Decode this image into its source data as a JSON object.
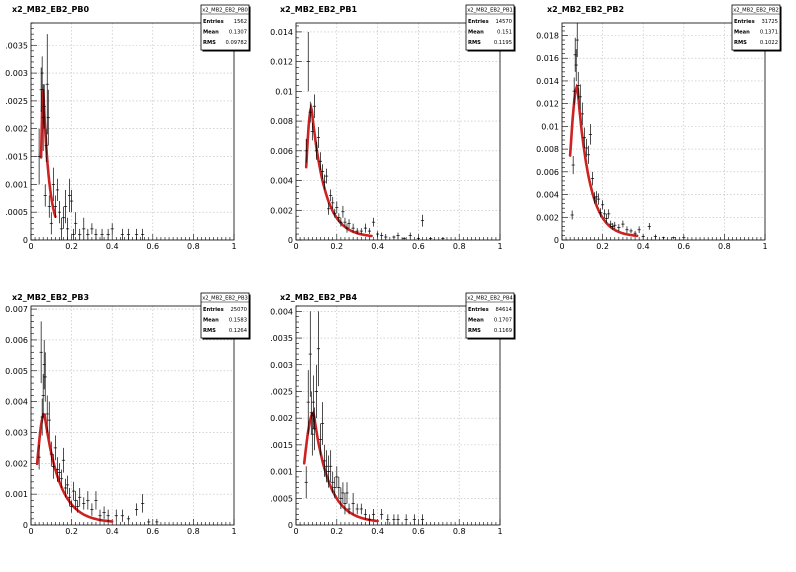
{
  "chart_data": [
    {
      "type": "scatter",
      "title": "x2_MB2_EB2_PB0",
      "xlim": [
        0,
        1
      ],
      "ylim": [
        0,
        0.0039
      ],
      "xticks": [
        0,
        0.2,
        0.4,
        0.6,
        0.8,
        1
      ],
      "xtick_labels": [
        "0",
        "0.2",
        "0.4",
        "0.6",
        "0.8",
        "1"
      ],
      "yticks": [
        0.0005,
        0.001,
        0.0015,
        0.002,
        0.0025,
        0.003,
        0.0035
      ],
      "ytick_labels": [
        ".0005",
        "0.001",
        ".0015",
        "0.002",
        ".0025",
        "0.003",
        ".0035"
      ],
      "grid": true,
      "fit_color": "#cc2222",
      "stats": {
        "name": "x2_MB2_EB2_PB0",
        "rows": [
          {
            "label": "Entries",
            "value": "1562"
          },
          {
            "label": "Mean",
            "value": "0.1307"
          },
          {
            "label": "RMS",
            "value": "0.09782"
          }
        ]
      },
      "fit": {
        "x0": 0.05,
        "peak_x": 0.06,
        "peak_y": 0.0027,
        "decay": 0.03,
        "x_end": 0.12
      },
      "points": [
        [
          0.04,
          0.0015,
          0.0005
        ],
        [
          0.05,
          0.0027,
          0.0004
        ],
        [
          0.055,
          0.003,
          0.0003
        ],
        [
          0.06,
          0.0022,
          0.0006
        ],
        [
          0.065,
          0.0024,
          0.0004
        ],
        [
          0.07,
          0.0008,
          0.0002
        ],
        [
          0.075,
          0.0017,
          0.0003
        ],
        [
          0.08,
          0.0028,
          0.0009
        ],
        [
          0.085,
          0.0022,
          0.0005
        ],
        [
          0.09,
          0.0006,
          0.0002
        ],
        [
          0.1,
          0.0003,
          0.0002
        ],
        [
          0.11,
          0.001,
          0.0003
        ],
        [
          0.12,
          0.0006,
          0.0002
        ],
        [
          0.13,
          0.0009,
          0.0002
        ],
        [
          0.14,
          0.0005,
          0.0002
        ],
        [
          0.15,
          0.0002,
          0.0002
        ],
        [
          0.16,
          0.0004,
          0.0002
        ],
        [
          0.17,
          0.0006,
          0.0003
        ],
        [
          0.18,
          0.0002,
          0.0002
        ],
        [
          0.19,
          0.0008,
          0.0003
        ],
        [
          0.2,
          0.0007,
          0.0002
        ],
        [
          0.21,
          0.0001,
          0.0001
        ],
        [
          0.22,
          0.0003,
          0.0002
        ],
        [
          0.24,
          0.0001,
          0.0001
        ],
        [
          0.26,
          0.0002,
          0.0002
        ],
        [
          0.28,
          0.0001,
          0.0001
        ],
        [
          0.3,
          0.0002,
          0.0001
        ],
        [
          0.32,
          0.0001,
          0.0001
        ],
        [
          0.35,
          0.0001,
          0.0001
        ],
        [
          0.38,
          0.0001,
          0.0001
        ],
        [
          0.4,
          0.0002,
          0.0001
        ],
        [
          0.45,
          0.0001,
          0.0001
        ],
        [
          0.48,
          0.0001,
          0.0001
        ],
        [
          0.52,
          0.0001,
          0.0001
        ],
        [
          0.55,
          0.0001,
          0.0001
        ]
      ]
    },
    {
      "type": "scatter",
      "title": "x2_MB2_EB2_PB1",
      "xlim": [
        0,
        1
      ],
      "ylim": [
        0,
        0.0146
      ],
      "xticks": [
        0,
        0.2,
        0.4,
        0.6,
        0.8,
        1
      ],
      "xtick_labels": [
        "0",
        "0.2",
        "0.4",
        "0.6",
        "0.8",
        "1"
      ],
      "yticks": [
        0.002,
        0.004,
        0.006,
        0.008,
        0.01,
        0.012,
        0.014
      ],
      "ytick_labels": [
        "0.002",
        "0.004",
        "0.006",
        "0.008",
        "0.01",
        "0.012",
        "0.014"
      ],
      "grid": true,
      "fit_color": "#cc2222",
      "stats": {
        "name": "x2_MB2_EB2_PB1",
        "rows": [
          {
            "label": "Entries",
            "value": "14570"
          },
          {
            "label": "Mean",
            "value": "0.151"
          },
          {
            "label": "RMS",
            "value": "0.1195"
          }
        ]
      },
      "fit": {
        "x0": 0.05,
        "peak_x": 0.075,
        "peak_y": 0.0089,
        "decay": 0.065,
        "x_end": 0.37
      },
      "points": [
        [
          0.05,
          0.006,
          0.0008
        ],
        [
          0.06,
          0.012,
          0.002
        ],
        [
          0.07,
          0.0086,
          0.0007
        ],
        [
          0.08,
          0.0073,
          0.0006
        ],
        [
          0.09,
          0.009,
          0.0008
        ],
        [
          0.1,
          0.006,
          0.0006
        ],
        [
          0.11,
          0.0069,
          0.0007
        ],
        [
          0.12,
          0.0053,
          0.0006
        ],
        [
          0.13,
          0.0046,
          0.0005
        ],
        [
          0.14,
          0.0039,
          0.0005
        ],
        [
          0.15,
          0.0043,
          0.0005
        ],
        [
          0.16,
          0.0021,
          0.0004
        ],
        [
          0.17,
          0.003,
          0.0004
        ],
        [
          0.18,
          0.0025,
          0.0004
        ],
        [
          0.19,
          0.0018,
          0.0003
        ],
        [
          0.2,
          0.0022,
          0.0004
        ],
        [
          0.21,
          0.0015,
          0.0003
        ],
        [
          0.22,
          0.0012,
          0.0003
        ],
        [
          0.23,
          0.0019,
          0.0004
        ],
        [
          0.24,
          0.0012,
          0.0003
        ],
        [
          0.25,
          0.0008,
          0.0003
        ],
        [
          0.26,
          0.0011,
          0.0003
        ],
        [
          0.28,
          0.0008,
          0.0003
        ],
        [
          0.3,
          0.0006,
          0.0002
        ],
        [
          0.32,
          0.0006,
          0.0002
        ],
        [
          0.34,
          0.0008,
          0.0003
        ],
        [
          0.36,
          0.0006,
          0.0002
        ],
        [
          0.38,
          0.0012,
          0.0003
        ],
        [
          0.4,
          0.0004,
          0.0002
        ],
        [
          0.42,
          0.0003,
          0.0002
        ],
        [
          0.44,
          0.0002,
          0.0002
        ],
        [
          0.48,
          0.0002,
          0.0001
        ],
        [
          0.5,
          0.0003,
          0.0002
        ],
        [
          0.53,
          0.0001,
          0.0001
        ],
        [
          0.56,
          0.0003,
          0.0002
        ],
        [
          0.6,
          0.0001,
          0.0001
        ],
        [
          0.62,
          0.0013,
          0.0004
        ],
        [
          0.66,
          0.0001,
          0.0001
        ],
        [
          0.72,
          0.0001,
          0.0001
        ]
      ]
    },
    {
      "type": "scatter",
      "title": "x2_MB2_EB2_PB2",
      "xlim": [
        0,
        1
      ],
      "ylim": [
        0,
        0.0191
      ],
      "xticks": [
        0,
        0.2,
        0.4,
        0.6,
        0.8,
        1
      ],
      "xtick_labels": [
        "0",
        "0.2",
        "0.4",
        "0.6",
        "0.8",
        "1"
      ],
      "yticks": [
        0.002,
        0.004,
        0.006,
        0.008,
        0.01,
        0.012,
        0.014,
        0.016,
        0.018
      ],
      "ytick_labels": [
        "0.002",
        "0.004",
        "0.006",
        "0.008",
        "0.01",
        "0.012",
        "0.014",
        "0.016",
        "0.018"
      ],
      "grid": true,
      "fit_color": "#cc2222",
      "stats": {
        "name": "x2_MB2_EB2_PB2",
        "rows": [
          {
            "label": "Entries",
            "value": "31725"
          },
          {
            "label": "Mean",
            "value": "0.1371"
          },
          {
            "label": "RMS",
            "value": "0.1022"
          }
        ]
      },
      "fit": {
        "x0": 0.04,
        "peak_x": 0.075,
        "peak_y": 0.0135,
        "decay": 0.06,
        "x_end": 0.37
      },
      "points": [
        [
          0.05,
          0.0022,
          0.0004
        ],
        [
          0.055,
          0.0066,
          0.0008
        ],
        [
          0.06,
          0.0131,
          0.0012
        ],
        [
          0.065,
          0.0163,
          0.0015
        ],
        [
          0.07,
          0.0154,
          0.0014
        ],
        [
          0.075,
          0.0176,
          0.0015
        ],
        [
          0.08,
          0.0136,
          0.0012
        ],
        [
          0.09,
          0.0126,
          0.0011
        ],
        [
          0.1,
          0.0111,
          0.001
        ],
        [
          0.11,
          0.009,
          0.0009
        ],
        [
          0.12,
          0.0081,
          0.0008
        ],
        [
          0.13,
          0.0075,
          0.0008
        ],
        [
          0.14,
          0.0093,
          0.0009
        ],
        [
          0.15,
          0.0054,
          0.0006
        ],
        [
          0.16,
          0.0037,
          0.0005
        ],
        [
          0.17,
          0.0038,
          0.0005
        ],
        [
          0.18,
          0.0036,
          0.0005
        ],
        [
          0.19,
          0.0024,
          0.0004
        ],
        [
          0.2,
          0.0031,
          0.0004
        ],
        [
          0.21,
          0.0023,
          0.0004
        ],
        [
          0.22,
          0.0019,
          0.0004
        ],
        [
          0.23,
          0.0023,
          0.0004
        ],
        [
          0.24,
          0.0014,
          0.0003
        ],
        [
          0.25,
          0.0012,
          0.0003
        ],
        [
          0.26,
          0.0013,
          0.0003
        ],
        [
          0.28,
          0.0011,
          0.0003
        ],
        [
          0.3,
          0.0014,
          0.0003
        ],
        [
          0.32,
          0.0009,
          0.0003
        ],
        [
          0.34,
          0.0008,
          0.0002
        ],
        [
          0.36,
          0.0006,
          0.0002
        ],
        [
          0.38,
          0.0009,
          0.0003
        ],
        [
          0.4,
          0.0003,
          0.0002
        ],
        [
          0.43,
          0.0012,
          0.0003
        ],
        [
          0.46,
          0.0003,
          0.0002
        ],
        [
          0.5,
          0.0002,
          0.0001
        ],
        [
          0.55,
          0.0002,
          0.0001
        ],
        [
          0.6,
          0.0002,
          0.0001
        ]
      ]
    },
    {
      "type": "scatter",
      "title": "x2_MB2_EB2_PB3",
      "xlim": [
        0,
        1
      ],
      "ylim": [
        0,
        0.0071
      ],
      "xticks": [
        0,
        0.2,
        0.4,
        0.6,
        0.8,
        1
      ],
      "xtick_labels": [
        "0",
        "0.2",
        "0.4",
        "0.6",
        "0.8",
        "1"
      ],
      "yticks": [
        0.001,
        0.002,
        0.003,
        0.004,
        0.005,
        0.006,
        0.007
      ],
      "ytick_labels": [
        "0.001",
        "0.002",
        "0.003",
        "0.004",
        "0.005",
        "0.006",
        "0.007"
      ],
      "grid": true,
      "fit_color": "#cc2222",
      "stats": {
        "name": "x2_MB2_EB2_PB3",
        "rows": [
          {
            "label": "Entries",
            "value": "25070"
          },
          {
            "label": "Mean",
            "value": "0.1583"
          },
          {
            "label": "RMS",
            "value": "0.1264"
          }
        ]
      },
      "fit": {
        "x0": 0.03,
        "peak_x": 0.065,
        "peak_y": 0.0036,
        "decay": 0.075,
        "x_end": 0.4
      },
      "points": [
        [
          0.04,
          0.0022,
          0.0004
        ],
        [
          0.05,
          0.0056,
          0.001
        ],
        [
          0.055,
          0.0035,
          0.0006
        ],
        [
          0.06,
          0.0042,
          0.0007
        ],
        [
          0.065,
          0.0052,
          0.0008
        ],
        [
          0.07,
          0.0048,
          0.0008
        ],
        [
          0.08,
          0.0036,
          0.0006
        ],
        [
          0.09,
          0.0034,
          0.0006
        ],
        [
          0.1,
          0.0023,
          0.0004
        ],
        [
          0.11,
          0.0019,
          0.0004
        ],
        [
          0.12,
          0.0025,
          0.0004
        ],
        [
          0.13,
          0.0018,
          0.0004
        ],
        [
          0.14,
          0.0017,
          0.0003
        ],
        [
          0.15,
          0.0015,
          0.0003
        ],
        [
          0.16,
          0.0021,
          0.0004
        ],
        [
          0.17,
          0.0012,
          0.0003
        ],
        [
          0.18,
          0.0013,
          0.0003
        ],
        [
          0.19,
          0.0009,
          0.0003
        ],
        [
          0.2,
          0.0006,
          0.0002
        ],
        [
          0.21,
          0.0011,
          0.0003
        ],
        [
          0.22,
          0.0008,
          0.0003
        ],
        [
          0.23,
          0.0006,
          0.0002
        ],
        [
          0.24,
          0.0009,
          0.0003
        ],
        [
          0.26,
          0.0007,
          0.0002
        ],
        [
          0.28,
          0.0008,
          0.0003
        ],
        [
          0.3,
          0.0005,
          0.0002
        ],
        [
          0.32,
          0.0008,
          0.0003
        ],
        [
          0.34,
          0.0003,
          0.0002
        ],
        [
          0.36,
          0.0004,
          0.0002
        ],
        [
          0.38,
          0.0003,
          0.0002
        ],
        [
          0.42,
          0.0003,
          0.0002
        ],
        [
          0.45,
          0.0003,
          0.0002
        ],
        [
          0.48,
          0.0002,
          0.0001
        ],
        [
          0.52,
          0.0005,
          0.0002
        ],
        [
          0.55,
          0.0007,
          0.0003
        ],
        [
          0.58,
          0.0001,
          0.0001
        ],
        [
          0.62,
          0.0001,
          0.0001
        ]
      ]
    },
    {
      "type": "scatter",
      "title": "x2_MB2_EB2_PB4",
      "xlim": [
        0,
        1
      ],
      "ylim": [
        0,
        0.0041
      ],
      "xticks": [
        0,
        0.2,
        0.4,
        0.6,
        0.8,
        1
      ],
      "xtick_labels": [
        "0",
        "0.2",
        "0.4",
        "0.6",
        "0.8",
        "1"
      ],
      "yticks": [
        0.0005,
        0.001,
        0.0015,
        0.002,
        0.0025,
        0.003,
        0.0035,
        0.004
      ],
      "ytick_labels": [
        ".0005",
        "0.001",
        ".0015",
        "0.002",
        ".0025",
        "0.003",
        ".0035",
        "0.004"
      ],
      "grid": true,
      "fit_color": "#cc2222",
      "stats": {
        "name": "x2_MB2_EB2_PB4",
        "rows": [
          {
            "label": "Entries",
            "value": "84614"
          },
          {
            "label": "Mean",
            "value": "0.1707"
          },
          {
            "label": "RMS",
            "value": "0.1169"
          }
        ]
      },
      "fit": {
        "x0": 0.04,
        "peak_x": 0.085,
        "peak_y": 0.0021,
        "decay": 0.075,
        "x_end": 0.4
      },
      "points": [
        [
          0.05,
          0.0008,
          0.0003
        ],
        [
          0.06,
          0.0023,
          0.0006
        ],
        [
          0.07,
          0.0032,
          0.0008
        ],
        [
          0.075,
          0.0021,
          0.0004
        ],
        [
          0.08,
          0.0017,
          0.0004
        ],
        [
          0.085,
          0.0023,
          0.0005
        ],
        [
          0.09,
          0.0018,
          0.0004
        ],
        [
          0.1,
          0.0025,
          0.0005
        ],
        [
          0.11,
          0.0033,
          0.0007
        ],
        [
          0.12,
          0.0016,
          0.0003
        ],
        [
          0.13,
          0.0019,
          0.0004
        ],
        [
          0.14,
          0.0012,
          0.0003
        ],
        [
          0.15,
          0.0011,
          0.0003
        ],
        [
          0.16,
          0.001,
          0.0003
        ],
        [
          0.17,
          0.0011,
          0.0003
        ],
        [
          0.18,
          0.0008,
          0.0002
        ],
        [
          0.19,
          0.0007,
          0.0002
        ],
        [
          0.2,
          0.0009,
          0.0002
        ],
        [
          0.21,
          0.0007,
          0.0002
        ],
        [
          0.22,
          0.0005,
          0.0002
        ],
        [
          0.23,
          0.0006,
          0.0002
        ],
        [
          0.24,
          0.0004,
          0.0002
        ],
        [
          0.25,
          0.0006,
          0.0002
        ],
        [
          0.26,
          0.0003,
          0.0001
        ],
        [
          0.28,
          0.0004,
          0.0002
        ],
        [
          0.3,
          0.0003,
          0.0001
        ],
        [
          0.32,
          0.0003,
          0.0001
        ],
        [
          0.34,
          0.0002,
          0.0001
        ],
        [
          0.36,
          0.0001,
          0.0001
        ],
        [
          0.38,
          0.0002,
          0.0001
        ],
        [
          0.42,
          0.0002,
          0.0001
        ],
        [
          0.45,
          0.0001,
          0.0001
        ],
        [
          0.48,
          0.0001,
          0.0001
        ],
        [
          0.5,
          0.0001,
          0.0001
        ],
        [
          0.54,
          0.0001,
          0.0001
        ],
        [
          0.58,
          0.0001,
          0.0001
        ],
        [
          0.62,
          0.0001,
          0.0001
        ]
      ]
    }
  ]
}
